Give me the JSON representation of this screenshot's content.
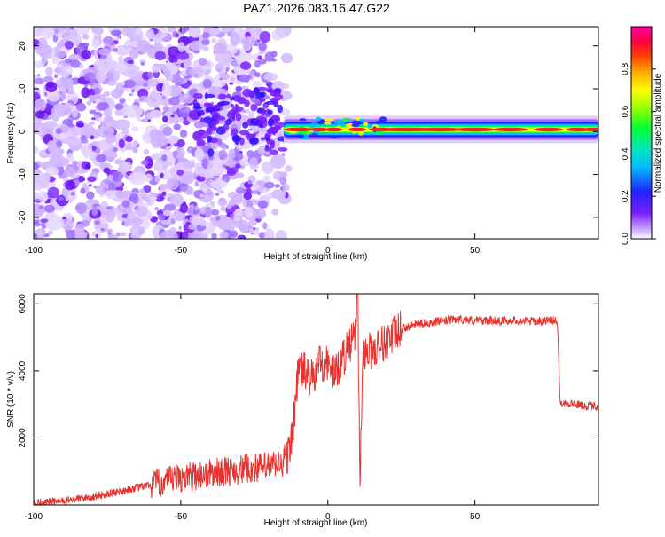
{
  "title": "PAZ1.2026.083.16.47.G22",
  "chart_data": [
    {
      "type": "heatmap",
      "name": "spectrogram",
      "xlabel": "Height of straight line (km)",
      "ylabel": "Frequency (Hz)",
      "xlim": [
        -100,
        92
      ],
      "ylim": [
        -25,
        24.5
      ],
      "xticks": [
        -100,
        -50,
        0,
        50
      ],
      "xtick_labels": [
        "-100",
        "-50",
        "0",
        "50"
      ],
      "yticks": [
        -20,
        -10,
        0,
        10,
        20
      ],
      "ytick_labels": [
        "-20",
        "-10",
        "0",
        "10",
        "20"
      ],
      "colorbar": {
        "label": "Normalized spectral amplitude",
        "range": [
          0,
          1
        ],
        "ticks": [
          0.0,
          0.2,
          0.4,
          0.6,
          0.8
        ],
        "tick_labels": [
          "0.0",
          "0.2",
          "0.4",
          "0.6",
          "0.8"
        ]
      },
      "description_points": {
        "noise_region_x": [
          -100,
          -15
        ],
        "signal_band_x": [
          -15,
          92
        ],
        "signal_center_freq": 0.5
      }
    },
    {
      "type": "line",
      "name": "snr",
      "xlabel": "Height of straight line (km)",
      "ylabel": "SNR (10 * v/v)",
      "xlim": [
        -100,
        92
      ],
      "ylim": [
        0,
        6300
      ],
      "xticks": [
        -100,
        -50,
        0,
        50
      ],
      "xtick_labels": [
        "-100",
        "-50",
        "0",
        "50"
      ],
      "yticks": [
        2000,
        4000,
        6000
      ],
      "ytick_labels": [
        "2000",
        "4000",
        "6000"
      ],
      "color": "#e8322e",
      "series": [
        {
          "name": "SNR",
          "x": [
            -100,
            -90,
            -80,
            -70,
            -60,
            -50,
            -40,
            -30,
            -20,
            -15,
            -13,
            -11,
            -10,
            -8,
            -5,
            -3,
            0,
            3,
            5,
            8,
            10,
            11,
            12,
            15,
            20,
            25,
            30,
            35,
            40,
            45,
            50,
            55,
            60,
            65,
            70,
            75,
            78,
            79,
            80,
            85,
            88,
            92
          ],
          "y": [
            60,
            120,
            250,
            420,
            600,
            800,
            950,
            1050,
            1150,
            1250,
            1600,
            3000,
            4100,
            4000,
            3700,
            4300,
            4200,
            3900,
            4400,
            4800,
            5300,
            900,
            4600,
            4600,
            4900,
            5250,
            5400,
            5450,
            5500,
            5550,
            5500,
            5500,
            5500,
            5500,
            5480,
            5500,
            5500,
            3100,
            3050,
            3000,
            2950,
            2950
          ]
        }
      ]
    }
  ]
}
